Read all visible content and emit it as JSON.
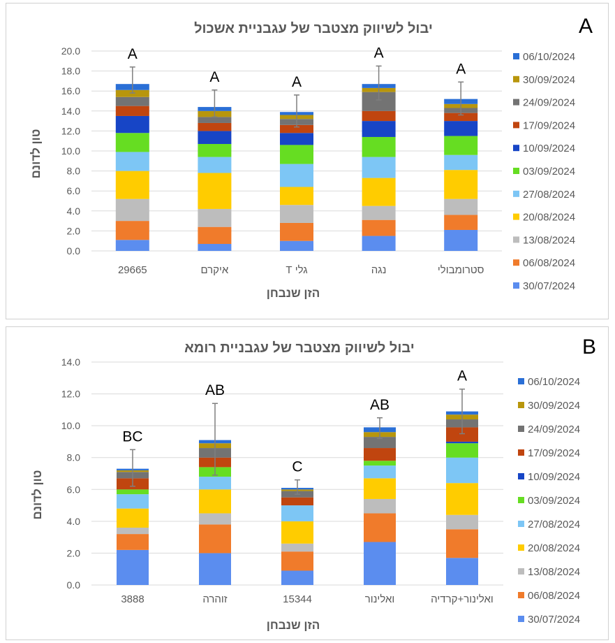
{
  "chart_data": [
    {
      "type": "bar",
      "stacked": true,
      "panel_label": "A",
      "title": "יבול לשיווק מצטבר של עגבניית אשכול",
      "xlabel": "הזן שנבחן",
      "ylabel": "טון לדונם",
      "ylim": [
        0,
        20
      ],
      "yticks": [
        "0.0",
        "2.0",
        "4.0",
        "6.0",
        "8.0",
        "10.0",
        "12.0",
        "14.0",
        "16.0",
        "18.0",
        "20.0"
      ],
      "categories": [
        "29665",
        "איקרם",
        "גלי T",
        "נגה",
        "סטרומבולי"
      ],
      "significance": [
        "A",
        "A",
        "A",
        "A",
        "A"
      ],
      "error_bars": [
        {
          "low": 15.8,
          "high": 18.4
        },
        {
          "low": 13.4,
          "high": 16.1
        },
        {
          "low": 12.4,
          "high": 15.6
        },
        {
          "low": 15.1,
          "high": 18.5
        },
        {
          "low": 13.6,
          "high": 16.9
        }
      ],
      "series": [
        {
          "name": "30/07/2024",
          "color": "#5B8DEF",
          "values": [
            1.1,
            0.7,
            1.0,
            1.5,
            2.1
          ]
        },
        {
          "name": "06/08/2024",
          "color": "#F07B2B",
          "values": [
            1.9,
            1.7,
            1.8,
            1.6,
            1.5
          ]
        },
        {
          "name": "13/08/2024",
          "color": "#BDBDBD",
          "values": [
            2.2,
            1.8,
            1.8,
            1.4,
            1.6
          ]
        },
        {
          "name": "20/08/2024",
          "color": "#FFCC00",
          "values": [
            2.8,
            3.6,
            1.8,
            2.8,
            2.9
          ]
        },
        {
          "name": "27/08/2024",
          "color": "#7DC6F5",
          "values": [
            1.9,
            1.6,
            2.3,
            2.1,
            1.5
          ]
        },
        {
          "name": "03/09/2024",
          "color": "#66DD22",
          "values": [
            1.9,
            1.3,
            1.9,
            2.0,
            1.9
          ]
        },
        {
          "name": "10/09/2024",
          "color": "#1745C6",
          "values": [
            1.7,
            1.3,
            1.2,
            1.6,
            1.5
          ]
        },
        {
          "name": "17/09/2024",
          "color": "#C0450F",
          "values": [
            1.0,
            0.8,
            0.8,
            1.0,
            0.8
          ]
        },
        {
          "name": "24/09/2024",
          "color": "#737373",
          "values": [
            0.9,
            0.6,
            0.6,
            1.9,
            0.5
          ]
        },
        {
          "name": "30/09/2024",
          "color": "#B8960C",
          "values": [
            0.7,
            0.6,
            0.4,
            0.4,
            0.4
          ]
        },
        {
          "name": "06/10/2024",
          "color": "#2A6FD6",
          "values": [
            0.6,
            0.4,
            0.3,
            0.4,
            0.5
          ]
        }
      ]
    },
    {
      "type": "bar",
      "stacked": true,
      "panel_label": "B",
      "title": "יבול לשיווק מצטבר של עגבניית רומא",
      "xlabel": "הזן שנבחן",
      "ylabel": "טון לדונם",
      "ylim": [
        0,
        14
      ],
      "yticks": [
        "0.0",
        "2.0",
        "4.0",
        "6.0",
        "8.0",
        "10.0",
        "12.0",
        "14.0"
      ],
      "categories": [
        "3888",
        "זוהרה",
        "15344",
        "ואלינור",
        "ואלינור+קרדיה"
      ],
      "significance": [
        "BC",
        "AB",
        "C",
        "AB",
        "A"
      ],
      "error_bars": [
        {
          "low": 6.2,
          "high": 8.5
        },
        {
          "low": 6.9,
          "high": 11.4
        },
        {
          "low": 5.7,
          "high": 6.6
        },
        {
          "low": 9.2,
          "high": 10.5
        },
        {
          "low": 9.5,
          "high": 12.3
        }
      ],
      "series": [
        {
          "name": "30/07/2024",
          "color": "#5B8DEF",
          "values": [
            2.2,
            2.0,
            0.9,
            2.7,
            1.7
          ]
        },
        {
          "name": "06/08/2024",
          "color": "#F07B2B",
          "values": [
            1.0,
            1.8,
            1.2,
            1.8,
            1.8
          ]
        },
        {
          "name": "13/08/2024",
          "color": "#BDBDBD",
          "values": [
            0.4,
            0.7,
            0.5,
            0.9,
            0.9
          ]
        },
        {
          "name": "20/08/2024",
          "color": "#FFCC00",
          "values": [
            1.2,
            1.5,
            1.4,
            1.3,
            2.0
          ]
        },
        {
          "name": "27/08/2024",
          "color": "#7DC6F5",
          "values": [
            0.9,
            0.8,
            1.0,
            0.8,
            1.6
          ]
        },
        {
          "name": "03/09/2024",
          "color": "#66DD22",
          "values": [
            0.3,
            0.6,
            0.0,
            0.3,
            0.9
          ]
        },
        {
          "name": "10/09/2024",
          "color": "#1745C6",
          "values": [
            0.0,
            0.0,
            0.0,
            0.0,
            0.1
          ]
        },
        {
          "name": "17/09/2024",
          "color": "#C0450F",
          "values": [
            0.7,
            0.6,
            0.5,
            0.8,
            0.9
          ]
        },
        {
          "name": "24/09/2024",
          "color": "#737373",
          "values": [
            0.4,
            0.6,
            0.4,
            0.7,
            0.5
          ]
        },
        {
          "name": "30/09/2024",
          "color": "#B8960C",
          "values": [
            0.1,
            0.3,
            0.1,
            0.3,
            0.3
          ]
        },
        {
          "name": "06/10/2024",
          "color": "#2A6FD6",
          "values": [
            0.1,
            0.2,
            0.1,
            0.3,
            0.2
          ]
        }
      ]
    }
  ]
}
